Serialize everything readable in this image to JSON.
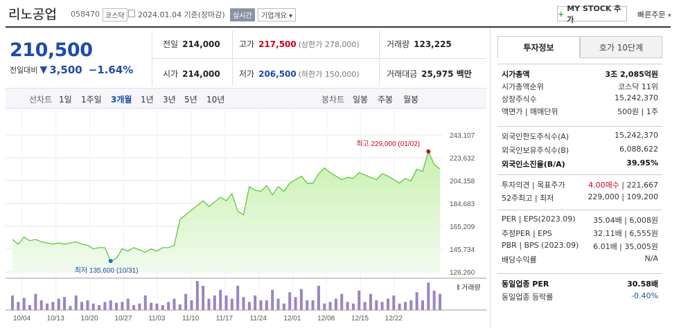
{
  "header": {
    "title": "리노공업",
    "code": "058470",
    "market": "코스닥",
    "date": "2024.01.04 기준(장마감)",
    "realtime": "실시간",
    "company_info": "기업개요",
    "mystock": "MY STOCK 추가",
    "quick_order": "빠른주문"
  },
  "price": {
    "current": "210,500",
    "change_label": "전일대비",
    "change": "3,500",
    "change_pct": "−1.64%",
    "color": "#1e4ba8"
  },
  "stats": {
    "prev_label": "전일",
    "prev": "214,000",
    "high_label": "고가",
    "high": "217,500",
    "upper_limit": "(상한가 278,000)",
    "volume_label": "거래량",
    "volume": "123,225",
    "open_label": "시가",
    "open": "214,000",
    "low_label": "저가",
    "low": "206,500",
    "lower_limit": "(하한가 150,000)",
    "amount_label": "거래대금",
    "amount": "25,975 백만"
  },
  "periods": {
    "line_label": "선차트",
    "items": [
      "1일",
      "1주일",
      "3개월",
      "1년",
      "3년",
      "5년",
      "10년"
    ],
    "active": "3개월",
    "candle_label": "봉차트",
    "candles": [
      "일봉",
      "주봉",
      "월봉"
    ]
  },
  "chart_data": {
    "type": "area",
    "y_ticks": [
      "243,107",
      "223,632",
      "204,158",
      "184,683",
      "165,209",
      "145,734",
      "126,260"
    ],
    "ylim": [
      126260,
      243107
    ],
    "x_ticks": [
      "10/04",
      "10/13",
      "10/20",
      "10/27",
      "11/03",
      "11/10",
      "11/17",
      "11/24",
      "12/01",
      "12/08",
      "12/15",
      "12/22"
    ],
    "high_label": "최고 229,000 (01/02)",
    "low_label": "최저 135,600 (10/31)",
    "volume_label": "거래량",
    "prices": [
      154000,
      150000,
      156000,
      153000,
      154000,
      152000,
      151000,
      150000,
      151000,
      150000,
      151000,
      152000,
      150000,
      149000,
      146000,
      147000,
      147000,
      135600,
      138000,
      146000,
      144000,
      147000,
      145000,
      143000,
      146000,
      144000,
      147000,
      147000,
      149000,
      171000,
      175000,
      179000,
      183000,
      187000,
      182000,
      186000,
      190000,
      187000,
      193000,
      178000,
      175000,
      199000,
      196000,
      195000,
      200000,
      192000,
      199000,
      195000,
      202000,
      205000,
      208000,
      202000,
      202000,
      210000,
      215000,
      211000,
      208000,
      205000,
      207000,
      206000,
      211000,
      209000,
      207000,
      205000,
      210000,
      208000,
      205000,
      202000,
      206000,
      204000,
      214000,
      212000,
      229000,
      218000,
      214000
    ],
    "volumes": [
      18,
      10,
      15,
      6,
      20,
      12,
      8,
      10,
      14,
      16,
      5,
      18,
      10,
      12,
      8,
      6,
      10,
      12,
      9,
      10,
      14,
      6,
      8,
      18,
      9,
      8,
      6,
      10,
      14,
      7,
      20,
      12,
      36,
      30,
      14,
      18,
      25,
      18,
      14,
      30,
      16,
      10,
      18,
      12,
      12,
      25,
      14,
      8,
      22,
      16,
      26,
      12,
      12,
      30,
      8,
      10,
      14,
      20,
      10,
      8,
      24,
      10,
      20,
      12,
      10,
      14,
      18,
      8,
      10,
      12,
      22,
      12,
      34,
      24,
      20
    ]
  },
  "side_tabs": [
    "투자정보",
    "호가 10단계"
  ],
  "info": {
    "s1": [
      {
        "l": "시가총액",
        "r": "3조 2,085억원",
        "bold": true
      },
      {
        "l": "시가총액순위",
        "r": "코스닥 11위"
      },
      {
        "l": "상장주식수",
        "r": "15,242,370"
      },
      {
        "l": "액면가 | 매매단위",
        "r": "500원 | 1주"
      }
    ],
    "s2": [
      {
        "l": "외국인한도주식수(A)",
        "r": "15,242,370"
      },
      {
        "l": "외국인보유주식수(B)",
        "r": "6,088,622"
      },
      {
        "l": "외국인소진율(B/A)",
        "r": "39.95%",
        "bold": true
      }
    ],
    "s3": [
      {
        "l": "투자의견 | 목표주가",
        "r_red": "4.00매수",
        "r": " | 221,667"
      },
      {
        "l": "52주최고 | 최저",
        "r": "229,000 | 109,200"
      }
    ],
    "s4": [
      {
        "l": "PER | EPS(2023.09)",
        "r": "35.04배 | 6,008원"
      },
      {
        "l": "추정PER | EPS",
        "r": "32.11배 | 6,555원"
      },
      {
        "l": "PBR | BPS (2023.09)",
        "r": "6.01배 | 35,005원"
      },
      {
        "l": "배당수익률",
        "r": "N/A"
      }
    ],
    "s5": [
      {
        "l": "동일업종 PER",
        "r": "30.58배",
        "bold": true
      },
      {
        "l": "동일업종 등락률",
        "r": "-0.40%"
      }
    ]
  }
}
